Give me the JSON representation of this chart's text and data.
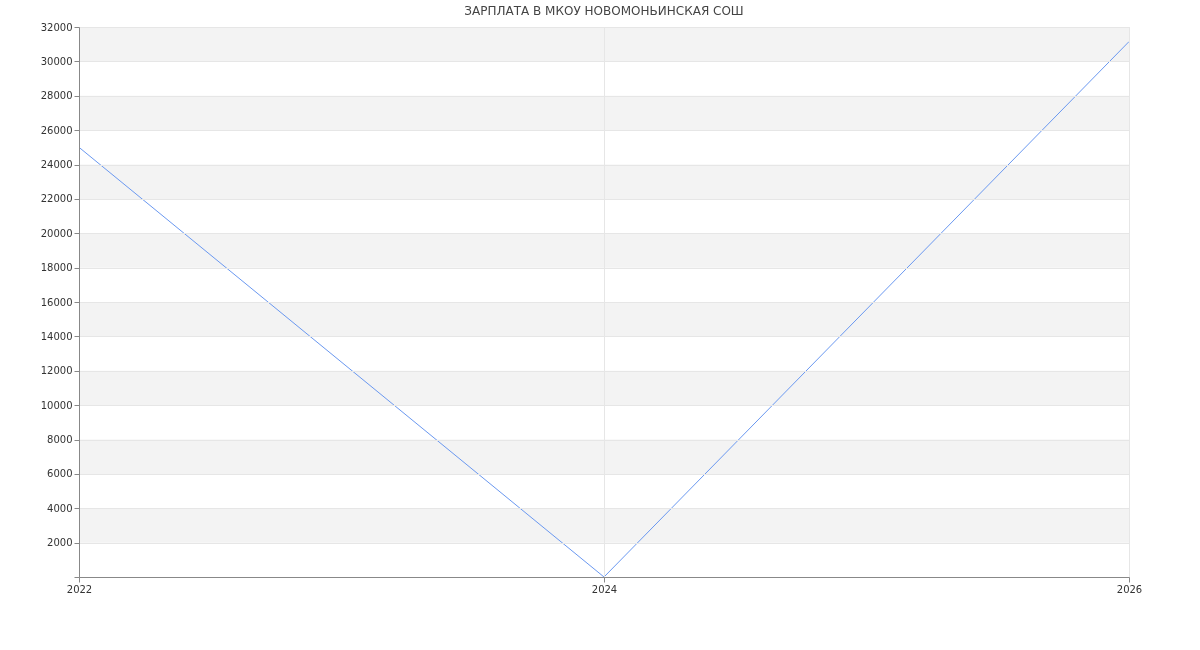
{
  "chart_data": {
    "type": "line",
    "title": "ЗАРПЛАТА В МКОУ НОВОМОНЬИНСКАЯ СОШ",
    "x": [
      2022,
      2024,
      2026
    ],
    "series": [
      {
        "color": "#6a98f0",
        "values": [
          25000,
          0,
          31150
        ]
      }
    ],
    "xlim": [
      2022,
      2026
    ],
    "xticks": [
      2022,
      2024,
      2026
    ],
    "ylim": [
      0,
      32000
    ],
    "yticks": [
      {
        "value": 0,
        "label": null
      },
      2000,
      4000,
      6000,
      8000,
      10000,
      12000,
      14000,
      16000,
      18000,
      20000,
      22000,
      24000,
      26000,
      28000,
      30000,
      32000
    ],
    "bands": [
      {
        "axis": "y",
        "from": 2000,
        "to": 4000,
        "color": "#f3f3f3"
      },
      {
        "axis": "y",
        "from": 6000,
        "to": 8000,
        "color": "#f3f3f3"
      },
      {
        "axis": "y",
        "from": 10000,
        "to": 12000,
        "color": "#f3f3f3"
      },
      {
        "axis": "y",
        "from": 14000,
        "to": 16000,
        "color": "#f3f3f3"
      },
      {
        "axis": "y",
        "from": 18000,
        "to": 20000,
        "color": "#f3f3f3"
      },
      {
        "axis": "y",
        "from": 22000,
        "to": 24000,
        "color": "#f3f3f3"
      },
      {
        "axis": "y",
        "from": 26000,
        "to": 28000,
        "color": "#f3f3f3"
      },
      {
        "axis": "y",
        "from": 30000,
        "to": 32000,
        "color": "#f3f3f3"
      }
    ],
    "grid": true,
    "marker": "none",
    "line_style": "solid"
  }
}
